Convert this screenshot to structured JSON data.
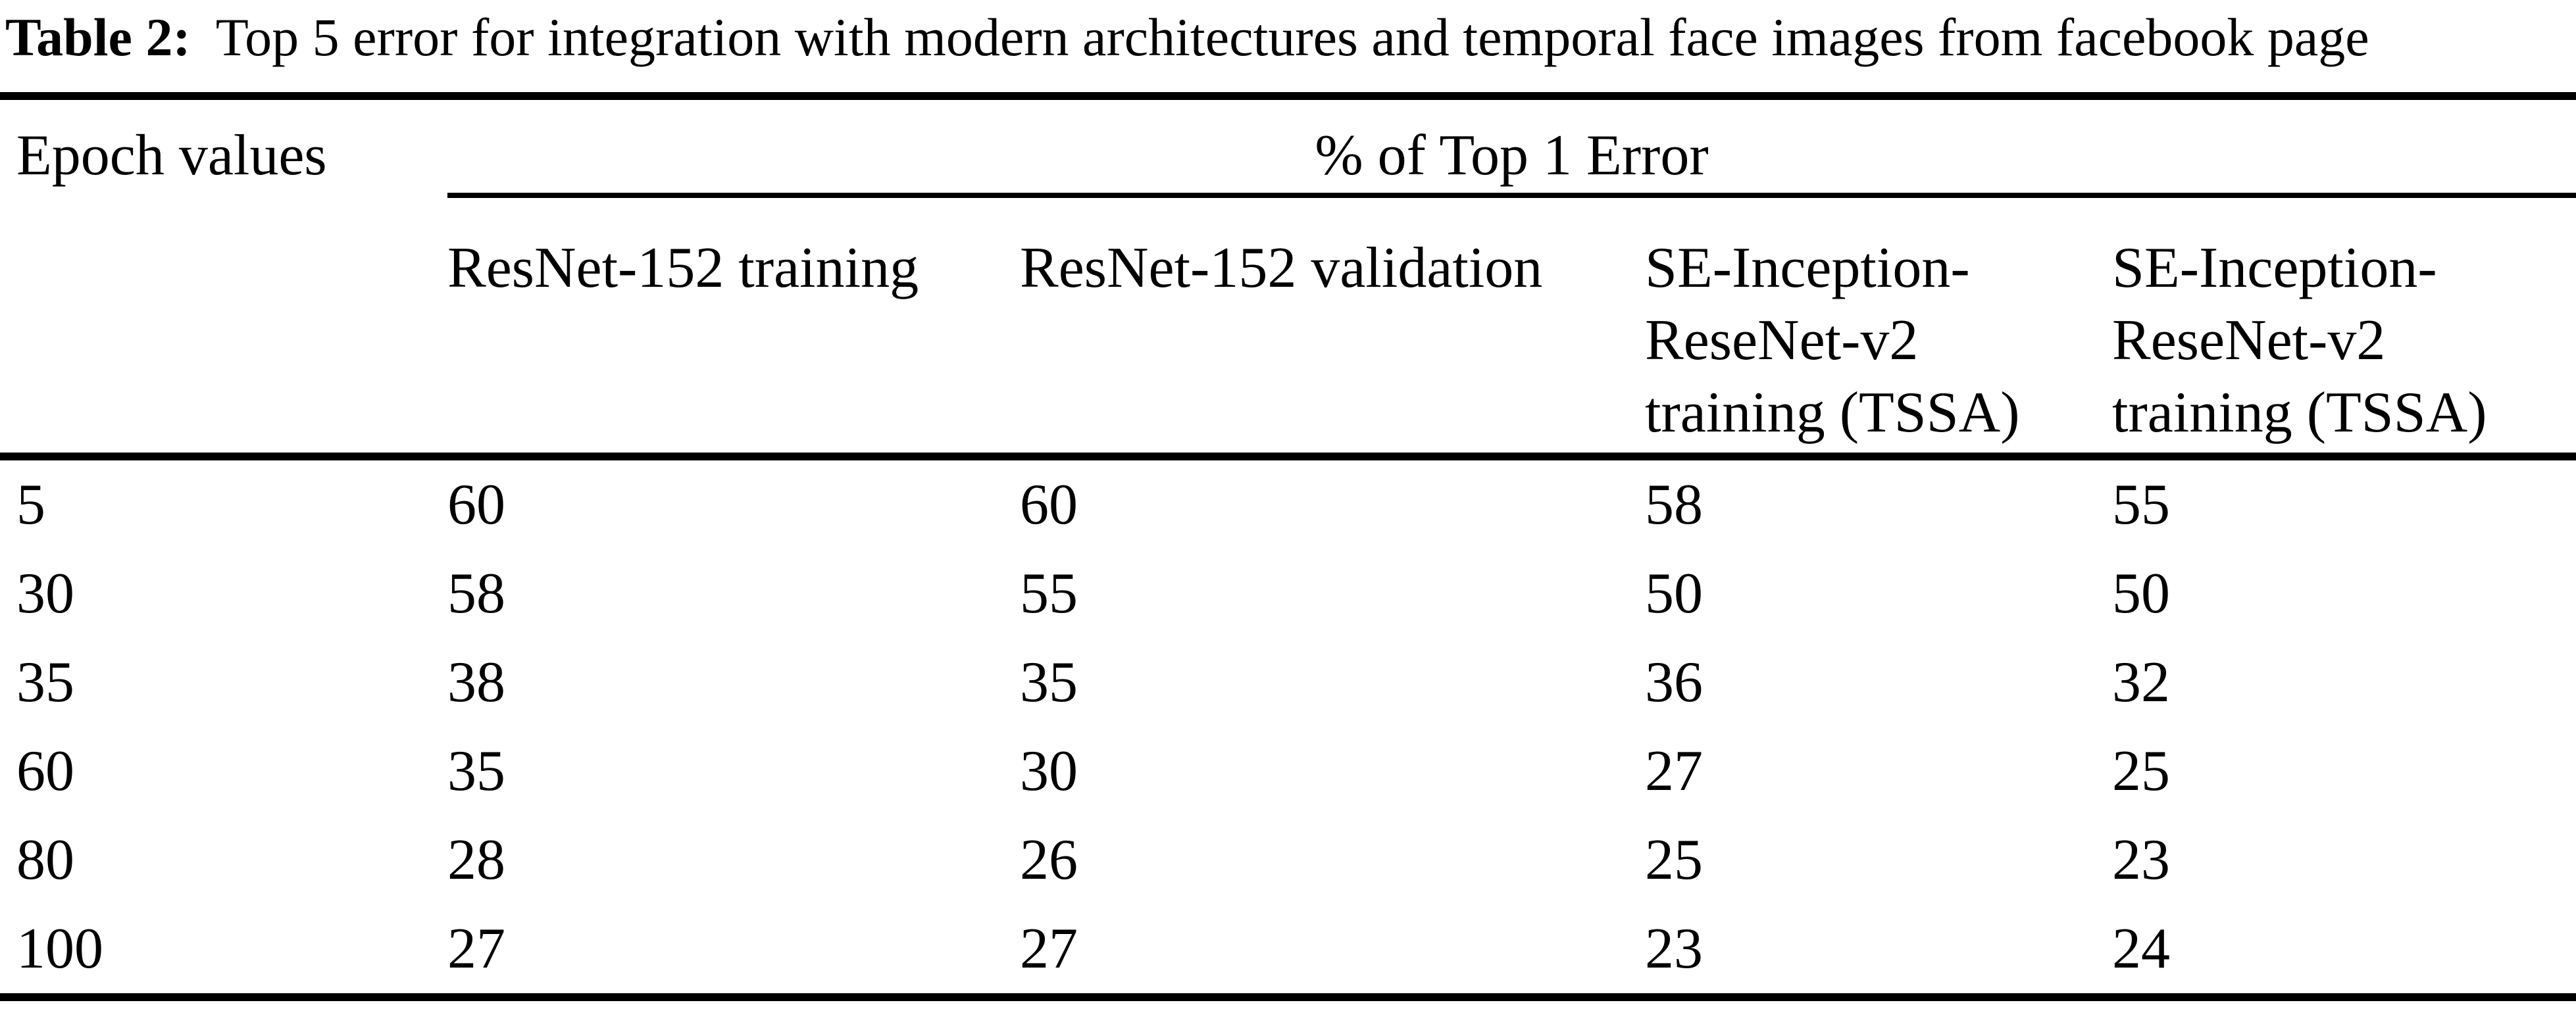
{
  "caption": {
    "label": "Table 2:",
    "text": "Top 5 error for integration with modern architectures and temporal face images from facebook page"
  },
  "table": {
    "stub_header": "Epoch values",
    "spanner": "% of Top 1 Error",
    "columns": [
      {
        "lines": {
          "0": "ResNet-152 training"
        }
      },
      {
        "lines": {
          "0": "ResNet-152 validation"
        }
      },
      {
        "lines": {
          "0": "SE-Inception-",
          "1": "ReseNet-v2",
          "2": "training (TSSA)"
        }
      },
      {
        "lines": {
          "0": "SE-Inception-",
          "1": "ReseNet-v2",
          "2": "training (TSSA)"
        }
      }
    ],
    "rows": [
      {
        "epoch": "5",
        "values": [
          "60",
          "60",
          "58",
          "55"
        ]
      },
      {
        "epoch": "30",
        "values": [
          "58",
          "55",
          "50",
          "50"
        ]
      },
      {
        "epoch": "35",
        "values": [
          "38",
          "35",
          "36",
          "32"
        ]
      },
      {
        "epoch": "60",
        "values": [
          "35",
          "30",
          "27",
          "25"
        ]
      },
      {
        "epoch": "80",
        "values": [
          "28",
          "26",
          "25",
          "23"
        ]
      },
      {
        "epoch": "100",
        "values": [
          "27",
          "27",
          "23",
          "24"
        ]
      }
    ]
  },
  "chart_data": {
    "type": "table",
    "title": "Table 2: Top 5 error for integration with modern architectures and temporal face images from facebook page",
    "spanner_label": "% of Top 1 Error",
    "columns": [
      "Epoch values",
      "ResNet-152 training",
      "ResNet-152 validation",
      "SE-Inception-ReseNet-v2 training (TSSA)",
      "SE-Inception-ReseNet-v2 training (TSSA)"
    ],
    "rows": [
      [
        5,
        60,
        60,
        58,
        55
      ],
      [
        30,
        58,
        55,
        50,
        50
      ],
      [
        35,
        38,
        35,
        36,
        32
      ],
      [
        60,
        35,
        30,
        27,
        25
      ],
      [
        80,
        28,
        26,
        25,
        23
      ],
      [
        100,
        27,
        27,
        23,
        24
      ]
    ]
  }
}
